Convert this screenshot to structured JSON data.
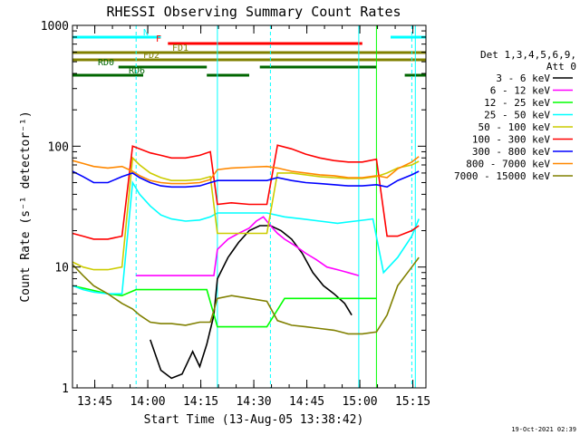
{
  "chart_data": {
    "type": "line",
    "title": "RHESSI Observing Summary Count Rates",
    "xlabel": "Start Time (13-Aug-05 13:38:42)",
    "ylabel": "Count Rate (s⁻¹ detector⁻¹)",
    "yscale": "log",
    "ylim": [
      1,
      1000
    ],
    "xlim_minutes": [
      0,
      100
    ],
    "x_ticks": [
      "13:45",
      "14:00",
      "14:15",
      "14:30",
      "14:45",
      "15:00",
      "15:15"
    ],
    "y_ticks": [
      "1",
      "10",
      "100",
      "1000"
    ],
    "timestamp": "19-Oct-2021 02:39",
    "legend": {
      "position": "right",
      "header": [
        "Det 1,3,4,5,6,9,",
        "Att 0"
      ],
      "entries": [
        {
          "label": "3 - 6 keV",
          "color": "#000000"
        },
        {
          "label": "6 - 12 keV",
          "color": "#ff00ff"
        },
        {
          "label": "12 - 25 keV",
          "color": "#00ff00"
        },
        {
          "label": "25 - 50 keV",
          "color": "#00ffff"
        },
        {
          "label": "50 - 100 keV",
          "color": "#cccc00"
        },
        {
          "label": "100 - 300 keV",
          "color": "#ff0000"
        },
        {
          "label": "300 - 800 keV",
          "color": "#0000ff"
        },
        {
          "label": "800 - 7000 keV",
          "color": "#ff8800"
        },
        {
          "label": "7000 - 15000 keV",
          "color": "#808000"
        }
      ]
    },
    "flags": [
      {
        "label": "N",
        "color": "#00ffff",
        "segments": [
          [
            0,
            25
          ],
          [
            90,
            100
          ]
        ]
      },
      {
        "label": "F",
        "color": "#ff0000",
        "segments": [
          [
            27,
            82
          ]
        ]
      },
      {
        "label": "FD1",
        "color": "#808000",
        "segments": [
          [
            0,
            100
          ]
        ]
      },
      {
        "label": "FD2",
        "color": "#808000",
        "segments": [
          [
            0,
            100
          ]
        ]
      },
      {
        "label": "RD0",
        "color": "#006600",
        "segments": [
          [
            13,
            38
          ],
          [
            53,
            86
          ]
        ]
      },
      {
        "label": "RD6",
        "color": "#006600",
        "segments": [
          [
            0,
            20
          ],
          [
            38,
            50
          ],
          [
            94,
            100
          ]
        ]
      }
    ],
    "vlines": [
      {
        "x": 0,
        "color": "#00ffff",
        "style": "solid"
      },
      {
        "x": 18,
        "color": "#00ffff",
        "style": "dashed"
      },
      {
        "x": 41,
        "color": "#00ffff",
        "style": "solid"
      },
      {
        "x": 56,
        "color": "#00ffff",
        "style": "dashed"
      },
      {
        "x": 81,
        "color": "#00ffff",
        "style": "solid"
      },
      {
        "x": 96,
        "color": "#00ffff",
        "style": "dashed"
      },
      {
        "x": 97,
        "color": "#00ffff",
        "style": "solid"
      },
      {
        "x": 86,
        "color": "#00ff00",
        "style": "solid"
      }
    ],
    "series": [
      {
        "name": "3 - 6 keV",
        "color": "#000000",
        "x": [
          22,
          25,
          28,
          31,
          34,
          36,
          38,
          40,
          41,
          44,
          47,
          50,
          53,
          56,
          59,
          62,
          65,
          68,
          71,
          74,
          77,
          79
        ],
        "y": [
          2.5,
          1.4,
          1.2,
          1.3,
          2.0,
          1.5,
          2.3,
          4.0,
          8.0,
          12,
          16,
          20,
          22,
          22,
          20,
          17,
          13,
          9,
          7,
          6,
          5,
          4
        ]
      },
      {
        "name": "6 - 12 keV",
        "color": "#ff00ff",
        "x": [
          18,
          22,
          26,
          30,
          34,
          38,
          40,
          41,
          44,
          47,
          50,
          52,
          54,
          56,
          58,
          60,
          63,
          66,
          69,
          72,
          75,
          78,
          81
        ],
        "y": [
          8.5,
          8.5,
          8.5,
          8.5,
          8.5,
          8.5,
          8.5,
          14,
          17,
          19,
          21,
          24,
          26,
          22,
          19,
          17,
          15,
          13,
          11.5,
          10,
          9.5,
          9,
          8.5
        ]
      },
      {
        "name": "12 - 25 keV",
        "color": "#00ff00",
        "x": [
          0,
          5,
          10,
          14,
          18,
          22,
          28,
          34,
          38,
          41,
          45,
          50,
          55,
          60,
          65,
          70,
          75,
          80,
          82,
          86
        ],
        "y": [
          7,
          6.5,
          6,
          5.8,
          6.5,
          6.5,
          6.5,
          6.5,
          6.5,
          3.2,
          3.2,
          3.2,
          3.2,
          5.5,
          5.5,
          5.5,
          5.5,
          5.5,
          5.5,
          5.5
        ]
      },
      {
        "name": "25 - 50 keV",
        "color": "#00ffff",
        "x": [
          0,
          3,
          6,
          10,
          14,
          17,
          19,
          22,
          25,
          28,
          32,
          36,
          39,
          41,
          45,
          50,
          55,
          60,
          65,
          70,
          75,
          80,
          85,
          88,
          92,
          96,
          98
        ],
        "y": [
          7,
          6.5,
          6.2,
          6.0,
          6.0,
          50,
          40,
          32,
          27,
          25,
          24,
          24.5,
          26,
          28,
          28,
          28,
          28,
          26,
          25,
          24,
          23,
          24,
          25,
          9,
          12,
          18,
          25
        ]
      },
      {
        "name": "50 - 100 keV",
        "color": "#cccc00",
        "x": [
          0,
          3,
          6,
          10,
          14,
          17,
          19,
          22,
          25,
          28,
          32,
          36,
          39,
          41,
          45,
          50,
          55,
          58,
          62,
          66,
          70,
          74,
          78,
          82,
          86,
          89,
          92,
          96,
          98
        ],
        "y": [
          11,
          10,
          9.5,
          9.5,
          10,
          80,
          70,
          60,
          55,
          52,
          52,
          53,
          56,
          19,
          19,
          19,
          19,
          60,
          60,
          58,
          56,
          55,
          54,
          54,
          56,
          60,
          66,
          70,
          75
        ]
      },
      {
        "name": "100 - 300 keV",
        "color": "#ff0000",
        "x": [
          0,
          3,
          6,
          10,
          14,
          17,
          19,
          22,
          25,
          28,
          32,
          36,
          39,
          41,
          45,
          50,
          55,
          58,
          62,
          66,
          70,
          74,
          78,
          82,
          86,
          89,
          92,
          96,
          98
        ],
        "y": [
          19,
          18,
          17,
          17,
          18,
          100,
          95,
          88,
          84,
          80,
          80,
          84,
          90,
          33,
          34,
          33,
          33,
          102,
          95,
          86,
          80,
          76,
          74,
          74,
          78,
          18,
          18,
          20,
          22
        ]
      },
      {
        "name": "300 - 800 keV",
        "color": "#0000ff",
        "x": [
          0,
          3,
          6,
          10,
          14,
          17,
          19,
          22,
          25,
          28,
          32,
          36,
          39,
          41,
          45,
          50,
          55,
          58,
          62,
          66,
          70,
          74,
          78,
          82,
          86,
          89,
          92,
          96,
          98
        ],
        "y": [
          62,
          56,
          50,
          50,
          56,
          60,
          55,
          50,
          47,
          46,
          46,
          47,
          50,
          52,
          52,
          52,
          52,
          55,
          52,
          50,
          49,
          48,
          47,
          47,
          48,
          46,
          52,
          58,
          62
        ]
      },
      {
        "name": "800 - 7000 keV",
        "color": "#ff8800",
        "x": [
          0,
          3,
          6,
          10,
          14,
          17,
          19,
          22,
          25,
          28,
          32,
          36,
          39,
          41,
          45,
          50,
          55,
          58,
          62,
          66,
          70,
          74,
          78,
          82,
          86,
          89,
          92,
          96,
          98
        ],
        "y": [
          76,
          72,
          68,
          66,
          68,
          62,
          57,
          52,
          50,
          49,
          49,
          50,
          53,
          64,
          66,
          67,
          68,
          66,
          62,
          60,
          58,
          57,
          55,
          55,
          57,
          55,
          65,
          74,
          82
        ]
      },
      {
        "name": "7000 - 15000 keV",
        "color": "#808000",
        "x": [
          0,
          3,
          6,
          10,
          14,
          17,
          19,
          22,
          25,
          28,
          32,
          36,
          39,
          41,
          45,
          50,
          55,
          58,
          62,
          66,
          70,
          74,
          78,
          82,
          86,
          89,
          92,
          96,
          98
        ],
        "y": [
          10.5,
          8.5,
          7,
          6,
          5,
          4.5,
          4,
          3.5,
          3.4,
          3.4,
          3.3,
          3.5,
          3.5,
          5.5,
          5.8,
          5.5,
          5.2,
          3.6,
          3.3,
          3.2,
          3.1,
          3.0,
          2.8,
          2.8,
          2.9,
          4,
          7,
          10,
          12
        ]
      }
    ]
  }
}
